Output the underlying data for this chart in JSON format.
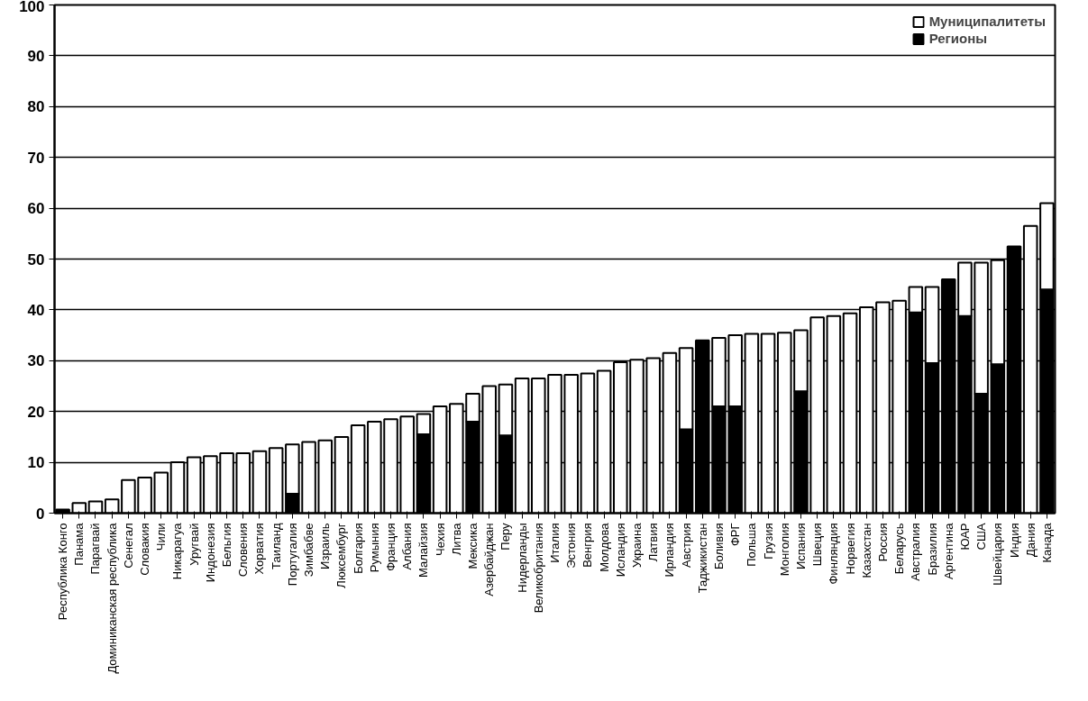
{
  "chart_data": {
    "type": "bar",
    "stacked": true,
    "categories": [
      "Республика Конго",
      "Панама",
      "Парагвай",
      "Доминиканская республика",
      "Сенегал",
      "Словакия",
      "Чили",
      "Никарагуа",
      "Уругвай",
      "Индонезия",
      "Бельгия",
      "Словения",
      "Хорватия",
      "Таиланд",
      "Португалия",
      "Зимбабве",
      "Израиль",
      "Люксембург",
      "Болгария",
      "Румыния",
      "Франция",
      "Албания",
      "Малайзия",
      "Чехия",
      "Литва",
      "Мексика",
      "Азербайджан",
      "Перу",
      "Нидерланды",
      "Великобритания",
      "Италия",
      "Эстония",
      "Венгрия",
      "Молдова",
      "Исландия",
      "Украина",
      "Латвия",
      "Ирландия",
      "Австрия",
      "Таджикистан",
      "Боливия",
      "ФРГ",
      "Польша",
      "Грузия",
      "Монголия",
      "Испания",
      "Швеция",
      "Финляндия",
      "Норвегия",
      "Казахстан",
      "Россия",
      "Беларусь",
      "Австралия",
      "Бразилия",
      "Аргентина",
      "ЮАР",
      "США",
      "Швейцария",
      "Индия",
      "Дания",
      "Канада"
    ],
    "series": [
      {
        "name": "Регионы",
        "color": "#000000",
        "values": [
          0.7,
          0,
          0,
          0,
          0,
          0,
          0,
          0,
          0,
          0,
          0,
          0,
          0,
          0,
          3.8,
          0,
          0,
          0,
          0,
          0,
          0,
          0,
          15.5,
          0,
          0,
          18,
          0,
          15.3,
          0,
          0,
          0,
          0,
          0,
          0,
          0,
          0,
          0,
          0,
          16.5,
          34,
          21,
          21,
          0,
          0,
          0,
          24,
          0,
          0,
          0,
          0,
          0,
          0,
          39.5,
          29.5,
          46,
          38.8,
          23.5,
          29.3,
          52.5,
          0,
          44
        ]
      },
      {
        "name": "Муниципалитеты",
        "color": "#ffffff",
        "values": [
          0,
          2,
          2.3,
          2.7,
          6.5,
          7,
          8,
          10,
          11,
          11.2,
          11.8,
          11.8,
          12.2,
          12.8,
          9.7,
          14,
          14.3,
          15,
          17.3,
          18,
          18.5,
          19,
          4,
          21,
          21.5,
          5.5,
          25,
          10,
          26.5,
          26.5,
          27.2,
          27.2,
          27.5,
          28,
          29.7,
          30.2,
          30.5,
          31.5,
          16,
          0,
          13.5,
          14,
          35.3,
          35.3,
          35.5,
          12,
          38.5,
          38.8,
          39.3,
          40.5,
          41.5,
          41.8,
          5,
          15,
          0,
          10.5,
          25.8,
          20.5,
          0,
          56.5,
          17
        ]
      }
    ],
    "ylim": [
      0,
      100
    ],
    "yticks": [
      0,
      10,
      20,
      30,
      40,
      50,
      60,
      70,
      80,
      90,
      100
    ],
    "grid": "y",
    "legend": "top right"
  }
}
